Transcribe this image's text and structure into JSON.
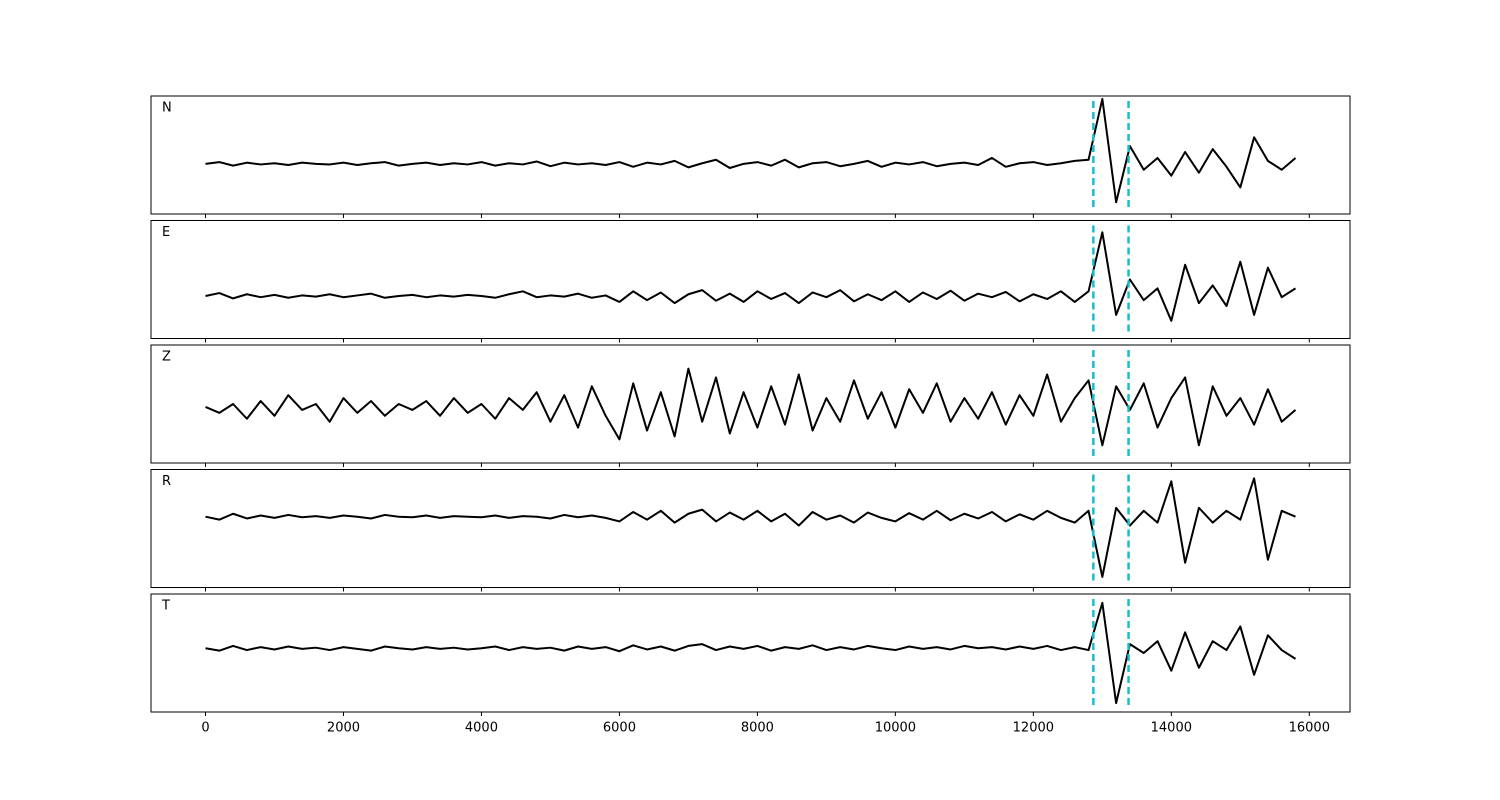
{
  "chart_data": {
    "type": "line",
    "x": [
      0,
      200,
      400,
      600,
      800,
      1000,
      1200,
      1400,
      1600,
      1800,
      2000,
      2200,
      2400,
      2600,
      2800,
      3000,
      3200,
      3400,
      3600,
      3800,
      4000,
      4200,
      4400,
      4600,
      4800,
      5000,
      5200,
      5400,
      5600,
      5800,
      6000,
      6200,
      6400,
      6600,
      6800,
      7000,
      7200,
      7400,
      7600,
      7800,
      8000,
      8200,
      8400,
      8600,
      8800,
      9000,
      9200,
      9400,
      9600,
      9800,
      10000,
      10200,
      10400,
      10600,
      10800,
      11000,
      11200,
      11400,
      11600,
      11800,
      12000,
      12200,
      12400,
      12600,
      12800,
      13000,
      13200,
      13400,
      13600,
      13800,
      14000,
      14200,
      14400,
      14600,
      14800,
      15000,
      15200,
      15400,
      15600,
      15800
    ],
    "series": [
      {
        "name": "N",
        "color": "#000000",
        "values": [
          -0.15,
          -0.12,
          -0.18,
          -0.13,
          -0.16,
          -0.14,
          -0.17,
          -0.13,
          -0.15,
          -0.16,
          -0.13,
          -0.17,
          -0.14,
          -0.12,
          -0.18,
          -0.15,
          -0.13,
          -0.17,
          -0.14,
          -0.16,
          -0.12,
          -0.18,
          -0.14,
          -0.16,
          -0.11,
          -0.19,
          -0.13,
          -0.16,
          -0.14,
          -0.17,
          -0.12,
          -0.2,
          -0.13,
          -0.16,
          -0.1,
          -0.21,
          -0.14,
          -0.08,
          -0.22,
          -0.15,
          -0.12,
          -0.18,
          -0.08,
          -0.21,
          -0.14,
          -0.12,
          -0.19,
          -0.15,
          -0.1,
          -0.2,
          -0.13,
          -0.16,
          -0.12,
          -0.19,
          -0.15,
          -0.13,
          -0.17,
          -0.05,
          -0.2,
          -0.14,
          -0.12,
          -0.17,
          -0.14,
          -0.1,
          -0.08,
          0.95,
          -0.8,
          0.15,
          -0.25,
          -0.05,
          -0.35,
          0.05,
          -0.3,
          0.1,
          -0.2,
          -0.55,
          0.3,
          -0.1,
          -0.25,
          -0.05
        ]
      },
      {
        "name": "E",
        "color": "#000000",
        "values": [
          -0.28,
          -0.23,
          -0.32,
          -0.25,
          -0.3,
          -0.26,
          -0.31,
          -0.27,
          -0.29,
          -0.25,
          -0.3,
          -0.27,
          -0.24,
          -0.31,
          -0.28,
          -0.26,
          -0.3,
          -0.27,
          -0.29,
          -0.26,
          -0.28,
          -0.31,
          -0.25,
          -0.2,
          -0.3,
          -0.27,
          -0.29,
          -0.24,
          -0.31,
          -0.27,
          -0.38,
          -0.2,
          -0.35,
          -0.22,
          -0.4,
          -0.25,
          -0.18,
          -0.36,
          -0.24,
          -0.38,
          -0.2,
          -0.33,
          -0.23,
          -0.4,
          -0.22,
          -0.3,
          -0.18,
          -0.37,
          -0.25,
          -0.35,
          -0.2,
          -0.38,
          -0.22,
          -0.33,
          -0.19,
          -0.36,
          -0.24,
          -0.3,
          -0.21,
          -0.37,
          -0.25,
          -0.33,
          -0.2,
          -0.38,
          -0.2,
          0.8,
          -0.6,
          0.0,
          -0.35,
          -0.15,
          -0.7,
          0.25,
          -0.4,
          -0.1,
          -0.45,
          0.3,
          -0.6,
          0.2,
          -0.3,
          -0.15
        ]
      },
      {
        "name": "Z",
        "color": "#000000",
        "values": [
          -0.05,
          -0.15,
          0.0,
          -0.25,
          0.05,
          -0.2,
          0.15,
          -0.1,
          0.0,
          -0.3,
          0.1,
          -0.15,
          0.05,
          -0.2,
          0.0,
          -0.1,
          0.05,
          -0.2,
          0.1,
          -0.15,
          0.0,
          -0.25,
          0.1,
          -0.1,
          0.2,
          -0.3,
          0.15,
          -0.4,
          0.3,
          -0.2,
          -0.6,
          0.35,
          -0.45,
          0.2,
          -0.55,
          0.6,
          -0.3,
          0.45,
          -0.5,
          0.2,
          -0.4,
          0.3,
          -0.35,
          0.5,
          -0.45,
          0.1,
          -0.3,
          0.4,
          -0.25,
          0.2,
          -0.4,
          0.25,
          -0.15,
          0.35,
          -0.3,
          0.1,
          -0.25,
          0.2,
          -0.35,
          0.15,
          -0.2,
          0.5,
          -0.3,
          0.1,
          0.4,
          -0.7,
          0.3,
          -0.1,
          0.35,
          -0.4,
          0.1,
          0.45,
          -0.7,
          0.3,
          -0.2,
          0.1,
          -0.35,
          0.25,
          -0.3,
          -0.1
        ]
      },
      {
        "name": "R",
        "color": "#000000",
        "values": [
          0.2,
          0.15,
          0.25,
          0.17,
          0.22,
          0.18,
          0.23,
          0.19,
          0.21,
          0.18,
          0.22,
          0.2,
          0.17,
          0.23,
          0.2,
          0.19,
          0.22,
          0.18,
          0.21,
          0.2,
          0.19,
          0.22,
          0.18,
          0.21,
          0.2,
          0.17,
          0.23,
          0.19,
          0.22,
          0.18,
          0.12,
          0.28,
          0.15,
          0.3,
          0.1,
          0.25,
          0.32,
          0.12,
          0.27,
          0.15,
          0.3,
          0.12,
          0.25,
          0.05,
          0.28,
          0.15,
          0.22,
          0.1,
          0.27,
          0.18,
          0.12,
          0.26,
          0.15,
          0.3,
          0.14,
          0.25,
          0.17,
          0.28,
          0.12,
          0.24,
          0.15,
          0.3,
          0.18,
          0.1,
          0.3,
          -0.82,
          0.35,
          0.05,
          0.3,
          0.1,
          0.8,
          -0.58,
          0.35,
          0.1,
          0.3,
          0.15,
          0.85,
          -0.53,
          0.3,
          0.2
        ]
      },
      {
        "name": "T",
        "color": "#000000",
        "values": [
          0.08,
          0.04,
          0.12,
          0.05,
          0.1,
          0.06,
          0.11,
          0.07,
          0.09,
          0.05,
          0.1,
          0.07,
          0.04,
          0.11,
          0.08,
          0.06,
          0.1,
          0.07,
          0.09,
          0.06,
          0.08,
          0.11,
          0.05,
          0.1,
          0.07,
          0.09,
          0.04,
          0.11,
          0.07,
          0.1,
          0.03,
          0.13,
          0.06,
          0.11,
          0.04,
          0.12,
          0.15,
          0.05,
          0.11,
          0.07,
          0.12,
          0.04,
          0.1,
          0.07,
          0.13,
          0.05,
          0.1,
          0.06,
          0.12,
          0.08,
          0.05,
          0.11,
          0.07,
          0.1,
          0.06,
          0.12,
          0.08,
          0.1,
          0.06,
          0.11,
          0.07,
          0.12,
          0.05,
          0.1,
          0.05,
          0.85,
          -0.85,
          0.15,
          0.0,
          0.2,
          -0.3,
          0.35,
          -0.25,
          0.2,
          0.05,
          0.45,
          -0.37,
          0.3,
          0.05,
          -0.1
        ]
      }
    ],
    "xlim": [
      -790,
      16590
    ],
    "xticks": [
      0,
      2000,
      4000,
      6000,
      8000,
      10000,
      12000,
      14000,
      16000
    ],
    "ylim": [
      -1,
      1
    ],
    "vlines": [
      12870,
      13380
    ],
    "vline_color": "#17becf",
    "vline_style": "dashed"
  }
}
